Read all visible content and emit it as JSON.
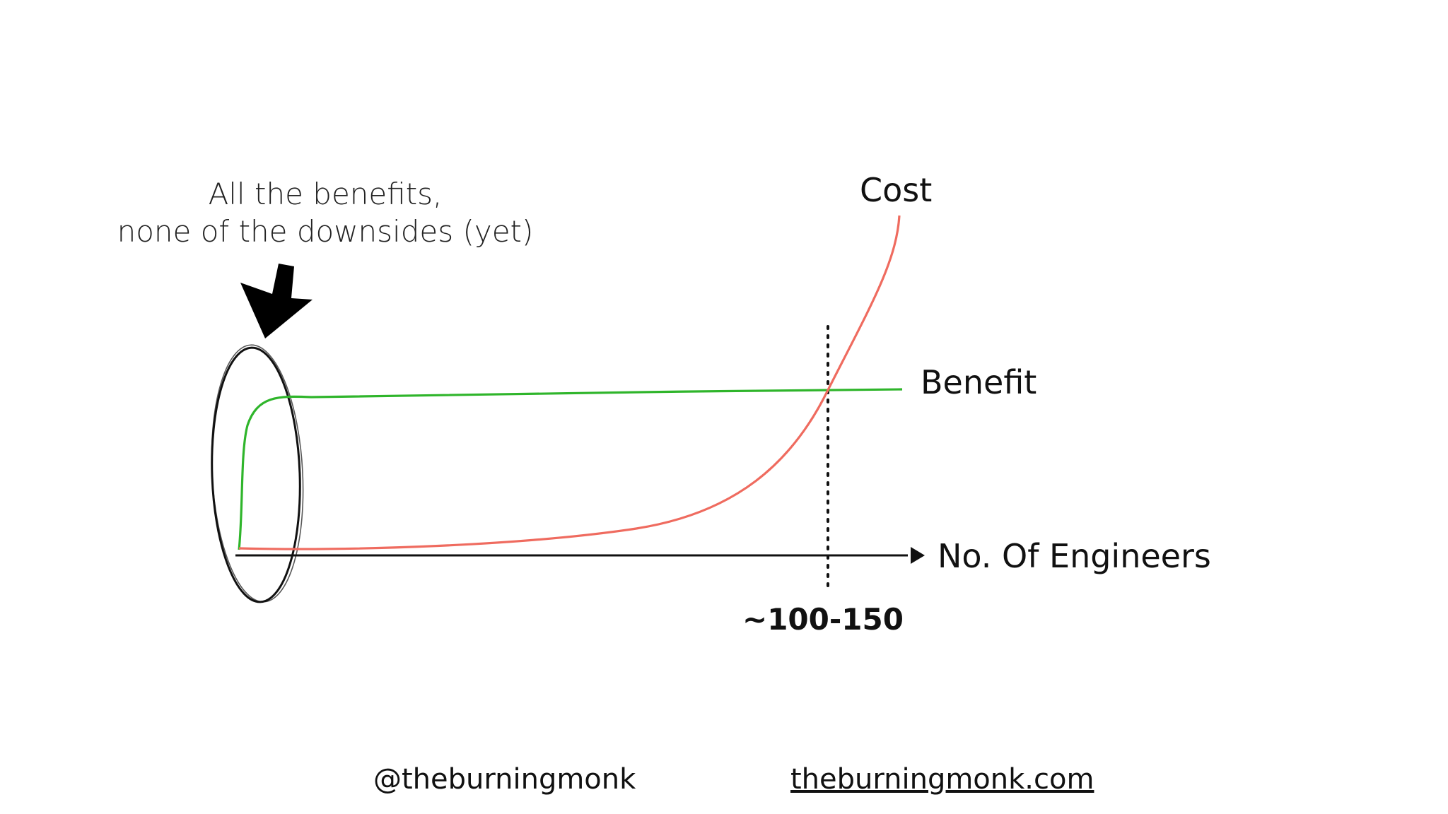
{
  "annotation": {
    "line1": "All the benefits,",
    "line2": "none of the downsides (yet)"
  },
  "labels": {
    "cost": "Cost",
    "benefit": "Benefit",
    "x_axis": "No. Of Engineers",
    "threshold": "~100-150"
  },
  "footer": {
    "handle": "@theburningmonk",
    "website": "theburningmonk.com"
  },
  "colors": {
    "cost": "#ef6b5f",
    "benefit": "#2fb52b",
    "axis": "#111111"
  }
}
